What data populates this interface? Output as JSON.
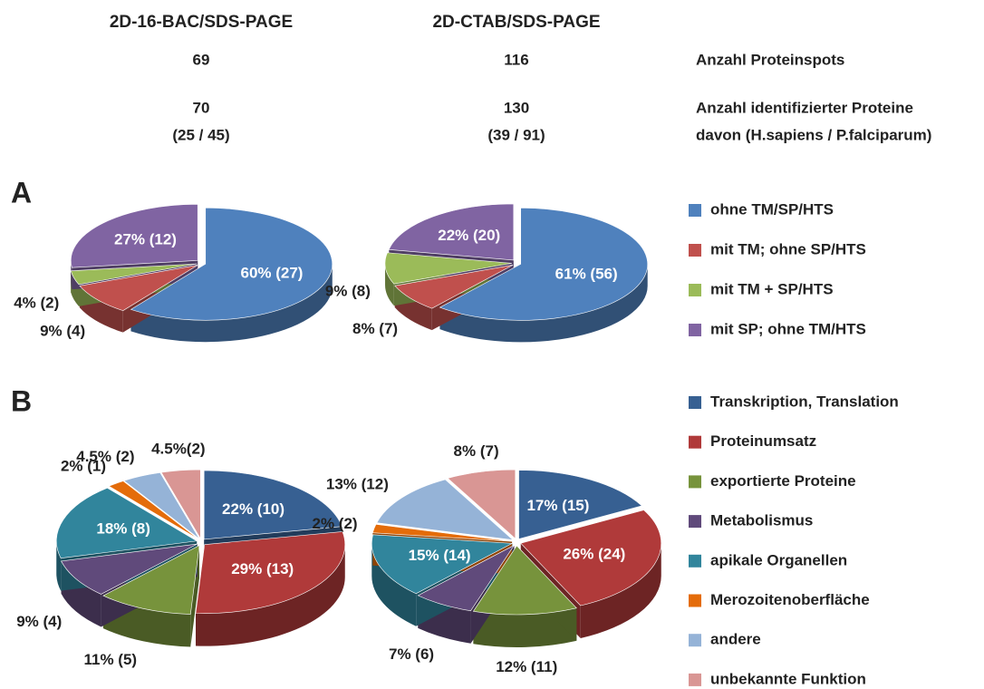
{
  "header": {
    "columns": [
      "2D-16-BAC/SDS-PAGE",
      "2D-CTAB/SDS-PAGE"
    ],
    "rows": [
      {
        "label": [
          "Anzahl Proteinspots"
        ],
        "cells": [
          [
            "69"
          ],
          [
            "116"
          ]
        ]
      },
      {
        "label": [
          "Anzahl identifizierter Proteine",
          "davon (H.sapiens / P.falciparum)"
        ],
        "cells": [
          [
            "70",
            "(25 / 45)"
          ],
          [
            "130",
            "(39 / 91)"
          ]
        ]
      }
    ]
  },
  "chart_data": [
    {
      "type": "pie",
      "panel": "A",
      "categories": [
        "ohne TM/SP/HTS",
        "mit TM; ohne SP/HTS",
        "mit TM + SP/HTS",
        "mit SP; ohne TM/HTS"
      ],
      "colors": [
        "#4f81bd",
        "#c0504d",
        "#9bbb59",
        "#8064a2"
      ],
      "series": [
        {
          "values": [
            60,
            9,
            4,
            27
          ],
          "value_labels": [
            "60% (27)",
            "9% (4)",
            "4% (2)",
            "27% (12)"
          ]
        },
        {
          "values": [
            61,
            8,
            9,
            22
          ],
          "value_labels": [
            "61% (56)",
            "8% (7)",
            "9% (8)",
            "22% (20)"
          ]
        }
      ]
    },
    {
      "type": "pie",
      "panel": "B",
      "categories": [
        "Transkription, Translation",
        "Proteinumsatz",
        "exportierte Proteine",
        "Metabolismus",
        "apikale Organellen",
        "Merozoitenoberfläche",
        "andere",
        "unbekannte Funktion"
      ],
      "colors": [
        "#376092",
        "#b03a3a",
        "#77933c",
        "#604a7b",
        "#31859c",
        "#e46c0a",
        "#95b3d7",
        "#d99694"
      ],
      "series": [
        {
          "values": [
            22,
            29,
            11,
            9,
            18,
            2,
            4.5,
            4.5
          ],
          "value_labels": [
            "22% (10)",
            "29% (13)",
            "11% (5)",
            "9% (4)",
            "18% (8)",
            "2% (1)",
            "4.5% (2)",
            "4.5%(2)"
          ]
        },
        {
          "values": [
            17,
            26,
            12,
            7,
            15,
            2,
            13,
            8
          ],
          "value_labels": [
            "17% (15)",
            "26% (24)",
            "12% (11)",
            "7% (6)",
            "15% (14)",
            "2% (2)",
            "13% (12)",
            "8% (7)"
          ]
        }
      ]
    }
  ]
}
